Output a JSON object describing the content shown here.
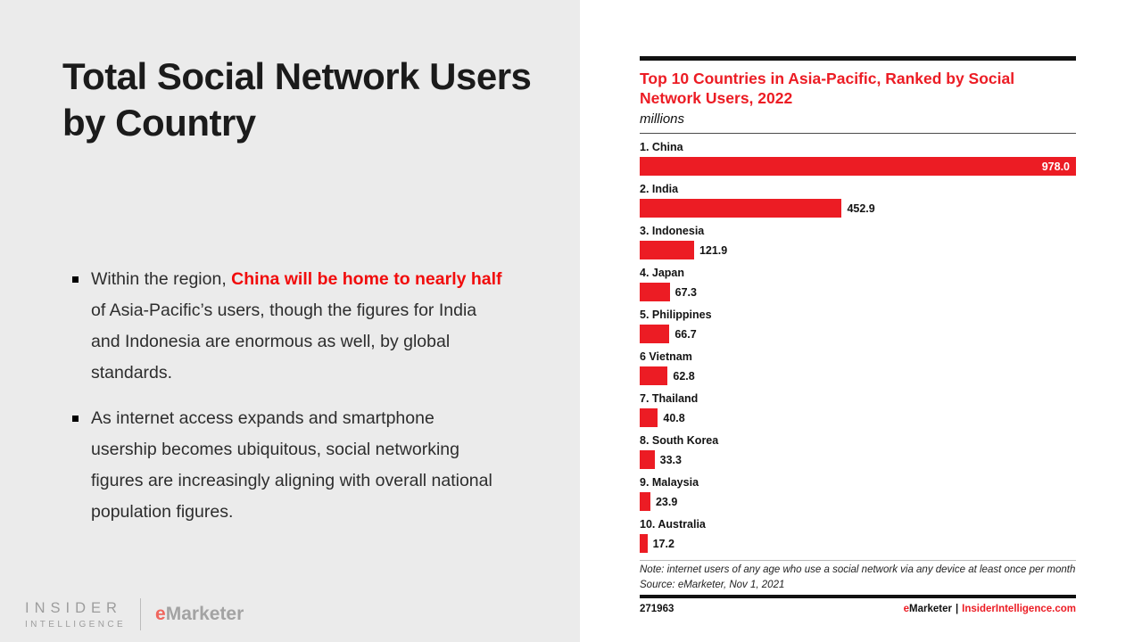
{
  "slide": {
    "title": "Total Social Network Users by Country",
    "bullets": [
      {
        "prefix": "Within the region, ",
        "emphasis": "China will be home to nearly half",
        "suffix": " of Asia-Pacific’s users, though the figures for India and Indonesia are enormous as well, by global standards."
      },
      {
        "prefix": "As internet access expands and smartphone usership becomes ubiquitous, social networking figures are increasingly aligning with overall national population figures.",
        "emphasis": "",
        "suffix": ""
      }
    ],
    "colors": {
      "panel_bg": "#EBEBEB",
      "emphasis_red": "#F10C0C"
    }
  },
  "footer_logo": {
    "insider_line1": "INSIDER",
    "insider_line2": "INTELLIGENCE",
    "emarketer_e": "e",
    "emarketer_rest": "Marketer"
  },
  "chart_data": {
    "type": "bar",
    "orientation": "horizontal",
    "title": "Top 10 Countries in Asia-Pacific, Ranked by Social Network Users, 2022",
    "units_label": "millions",
    "categories": [
      "1. China",
      "2. India",
      "3. Indonesia",
      "4. Japan",
      "5. Philippines",
      "6 Vietnam",
      "7. Thailand",
      "8. South Korea",
      "9. Malaysia",
      "10. Australia"
    ],
    "values": [
      978.0,
      452.9,
      121.9,
      67.3,
      66.7,
      62.8,
      40.8,
      33.3,
      23.9,
      17.2
    ],
    "value_labels": [
      "978.0",
      "452.9",
      "121.9",
      "67.3",
      "66.7",
      "62.8",
      "40.8",
      "33.3",
      "23.9",
      "17.2"
    ],
    "xlim": [
      0,
      978
    ],
    "grid": false,
    "legend": false,
    "bar_color": "#EC1C24",
    "note": "Note: internet users of any age who use a social network via any device at least once per month",
    "source": "Source: eMarketer, Nov 1, 2021",
    "chart_id": "271963",
    "footer_brand": {
      "e": "e",
      "rest": "Marketer",
      "separator": "|",
      "site": "InsiderIntelligence.com"
    }
  }
}
